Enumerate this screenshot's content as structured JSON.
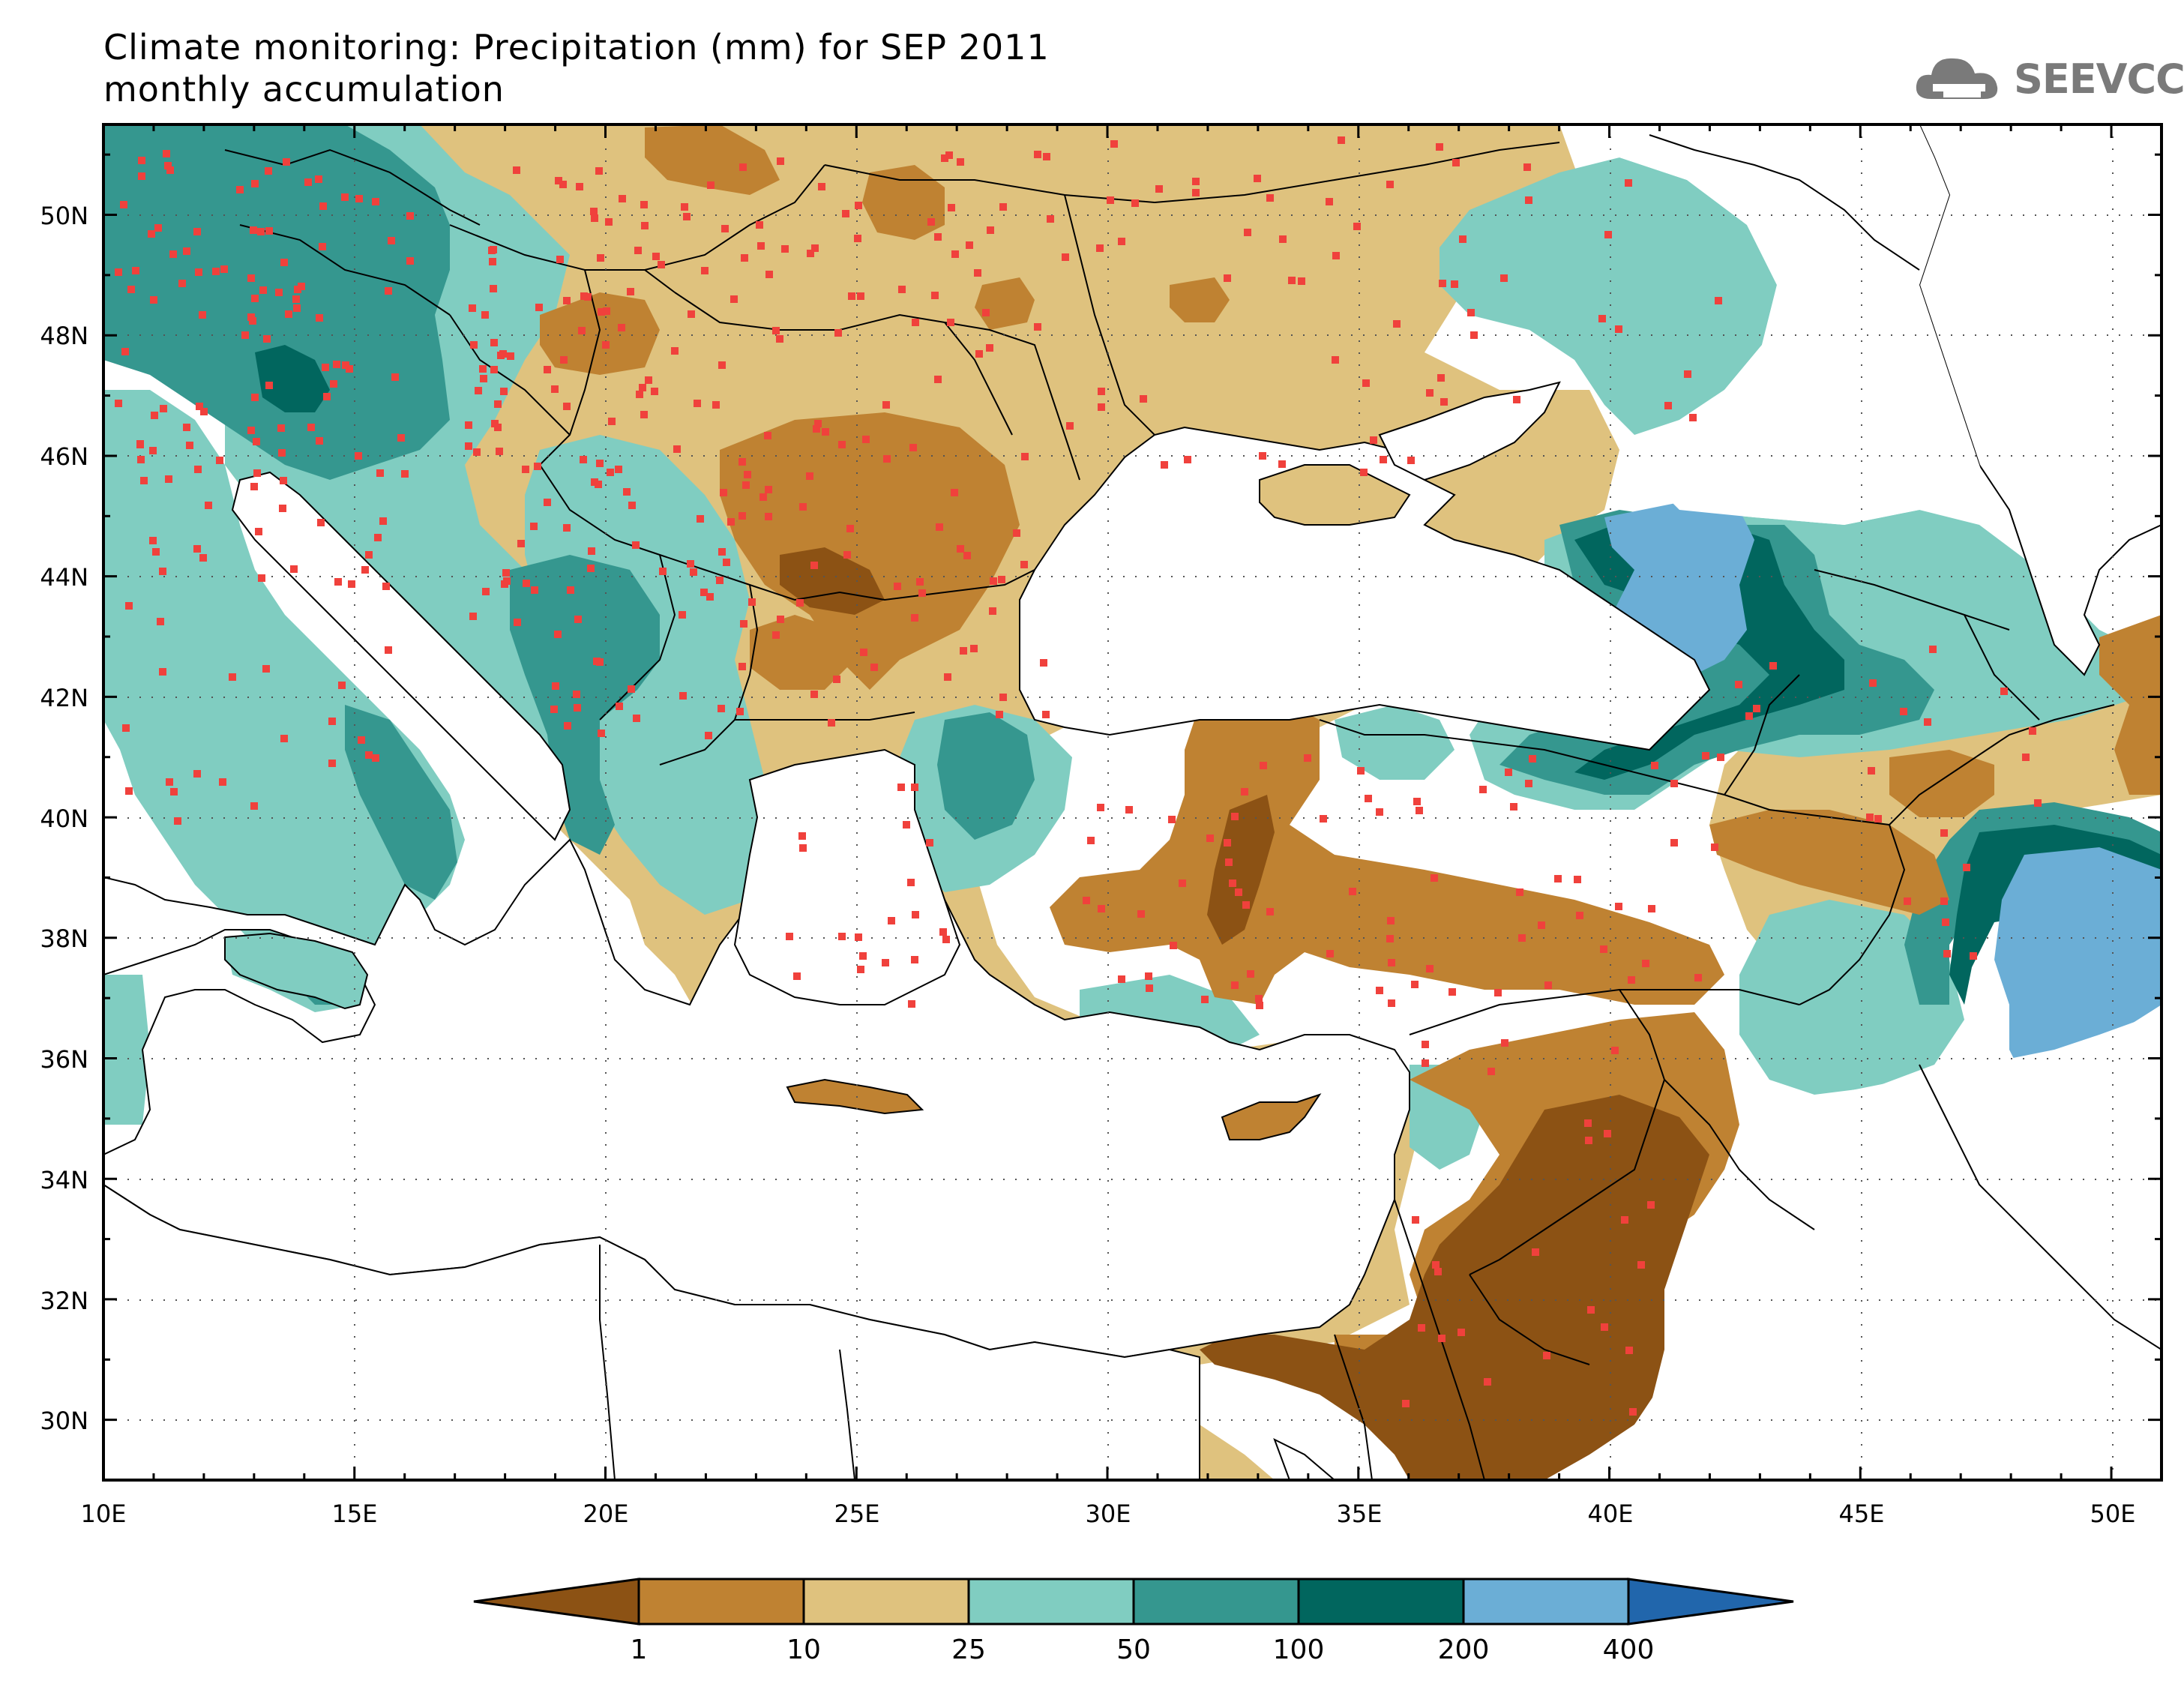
{
  "title": {
    "line1": "Climate monitoring: Precipitation (mm) for SEP 2011",
    "line2": "monthly accumulation"
  },
  "logo": {
    "text": "SEEVCCC",
    "icon": "cloud-icon"
  },
  "map": {
    "lon_range": [
      10,
      51
    ],
    "lat_range": [
      29,
      51.5
    ],
    "x_ticks": [
      "10E",
      "15E",
      "20E",
      "25E",
      "30E",
      "35E",
      "40E",
      "45E",
      "50E"
    ],
    "y_ticks": [
      "30N",
      "32N",
      "34N",
      "36N",
      "38N",
      "40N",
      "42N",
      "44N",
      "46N",
      "48N",
      "50N"
    ],
    "gridlines": "dotted",
    "station_marker_color": "#f0413c"
  },
  "colorbar": {
    "thresholds": [
      "1",
      "10",
      "25",
      "50",
      "100",
      "200",
      "400"
    ],
    "colors": [
      "#8c5214",
      "#bf8232",
      "#dfc27e",
      "#80cdc1",
      "#35978f",
      "#01665e",
      "#6baed6",
      "#2166ac"
    ],
    "extend": "both"
  }
}
